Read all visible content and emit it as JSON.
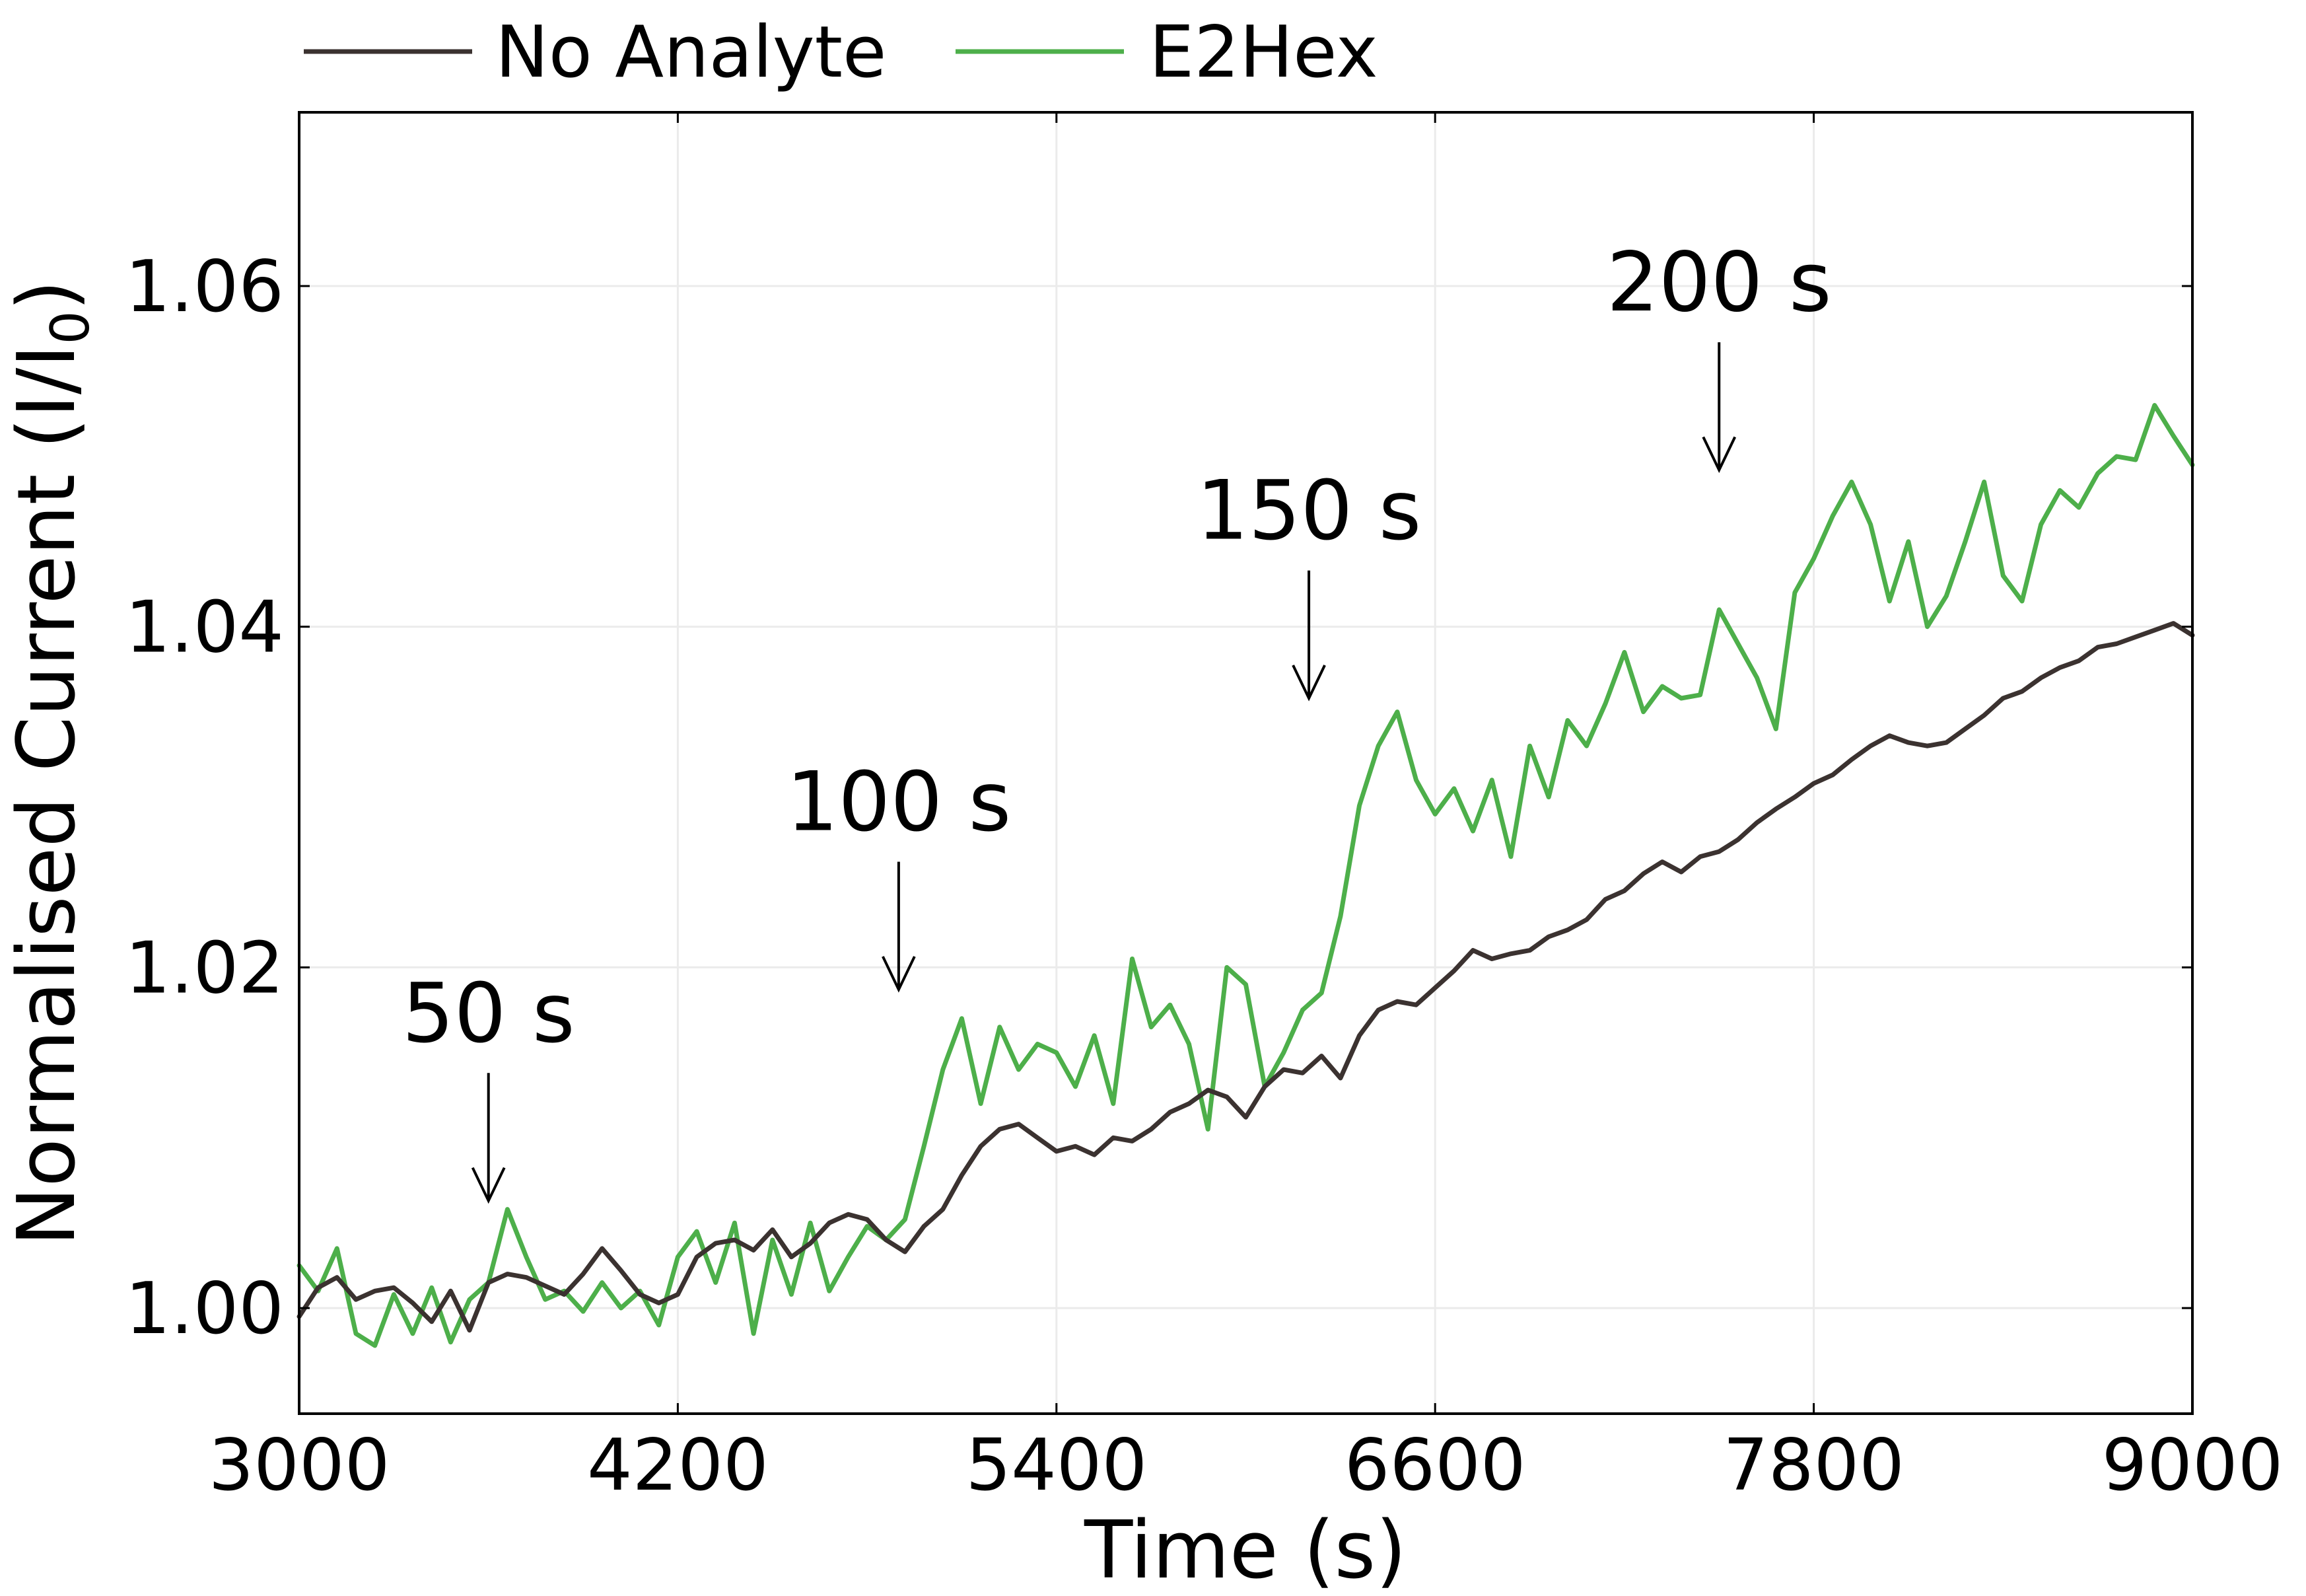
{
  "chart_data": {
    "type": "line",
    "title": "",
    "xlabel": "Time (s)",
    "ylabel_main": "Normalised Current (I/I",
    "ylabel_sub": "0",
    "ylabel_close": ")",
    "xlim": [
      3000,
      9000
    ],
    "ylim": [
      0.9938,
      1.0702
    ],
    "xticks": [
      3000,
      4200,
      5400,
      6600,
      7800,
      9000
    ],
    "xtick_labels": [
      "3000",
      "4200",
      "5400",
      "6600",
      "7800",
      "9000"
    ],
    "yticks": [
      1.0,
      1.02,
      1.04,
      1.06
    ],
    "ytick_labels": [
      "1.00",
      "1.02",
      "1.04",
      "1.06"
    ],
    "grid": true,
    "legend_position": "top-left-outside",
    "series": [
      {
        "name": "No Analyte",
        "color": "#3b3230",
        "x": [
          3000,
          3060,
          3120,
          3180,
          3240,
          3300,
          3360,
          3420,
          3480,
          3540,
          3600,
          3660,
          3720,
          3780,
          3840,
          3900,
          3960,
          4020,
          4080,
          4140,
          4200,
          4260,
          4320,
          4380,
          4440,
          4500,
          4560,
          4620,
          4680,
          4740,
          4800,
          4860,
          4920,
          4980,
          5040,
          5100,
          5160,
          5220,
          5280,
          5340,
          5400,
          5460,
          5520,
          5580,
          5640,
          5700,
          5760,
          5820,
          5880,
          5940,
          6000,
          6060,
          6120,
          6180,
          6240,
          6300,
          6360,
          6420,
          6480,
          6540,
          6600,
          6660,
          6720,
          6780,
          6840,
          6900,
          6960,
          7020,
          7080,
          7140,
          7200,
          7260,
          7320,
          7380,
          7440,
          7500,
          7560,
          7620,
          7680,
          7740,
          7800,
          7860,
          7920,
          7980,
          8040,
          8100,
          8160,
          8220,
          8280,
          8340,
          8400,
          8460,
          8520,
          8580,
          8640,
          8700,
          8760,
          8820,
          8880,
          8940,
          9000
        ],
        "y": [
          0.9995,
          1.0012,
          1.0018,
          1.0005,
          1.001,
          1.0012,
          1.0003,
          0.9992,
          1.001,
          0.9987,
          1.0015,
          1.002,
          1.0018,
          1.0013,
          1.0008,
          1.002,
          1.0035,
          1.0022,
          1.0008,
          1.0003,
          1.0008,
          1.003,
          1.0038,
          1.004,
          1.0034,
          1.0046,
          1.003,
          1.0038,
          1.005,
          1.0055,
          1.0052,
          1.004,
          1.0033,
          1.0048,
          1.0058,
          1.0078,
          1.0095,
          1.0105,
          1.0108,
          1.01,
          1.0092,
          1.0095,
          1.009,
          1.01,
          1.0098,
          1.0105,
          1.0115,
          1.012,
          1.0128,
          1.0124,
          1.0112,
          1.013,
          1.014,
          1.0138,
          1.0148,
          1.0135,
          1.016,
          1.0175,
          1.018,
          1.0178,
          1.0188,
          1.0198,
          1.021,
          1.0205,
          1.0208,
          1.021,
          1.0218,
          1.0222,
          1.0228,
          1.024,
          1.0245,
          1.0255,
          1.0262,
          1.0256,
          1.0265,
          1.0268,
          1.0275,
          1.0285,
          1.0293,
          1.03,
          1.0308,
          1.0313,
          1.0322,
          1.033,
          1.0336,
          1.0332,
          1.033,
          1.0332,
          1.034,
          1.0348,
          1.0358,
          1.0362,
          1.037,
          1.0376,
          1.038,
          1.0388,
          1.039,
          1.0394,
          1.0398,
          1.0402,
          1.0395
        ]
      },
      {
        "name": "E2Hex",
        "color": "#4daf4a",
        "x": [
          3000,
          3060,
          3120,
          3180,
          3240,
          3300,
          3360,
          3420,
          3480,
          3540,
          3600,
          3660,
          3720,
          3780,
          3840,
          3900,
          3960,
          4020,
          4080,
          4140,
          4200,
          4260,
          4320,
          4380,
          4440,
          4500,
          4560,
          4620,
          4680,
          4740,
          4800,
          4860,
          4920,
          4980,
          5040,
          5100,
          5160,
          5220,
          5280,
          5340,
          5400,
          5460,
          5520,
          5580,
          5640,
          5700,
          5760,
          5820,
          5880,
          5940,
          6000,
          6060,
          6120,
          6180,
          6240,
          6300,
          6360,
          6420,
          6480,
          6540,
          6600,
          6660,
          6720,
          6780,
          6840,
          6900,
          6960,
          7020,
          7080,
          7140,
          7200,
          7260,
          7320,
          7380,
          7440,
          7500,
          7560,
          7620,
          7680,
          7740,
          7800,
          7860,
          7920,
          7980,
          8040,
          8100,
          8160,
          8220,
          8280,
          8340,
          8400,
          8460,
          8520,
          8580,
          8640,
          8700,
          8760,
          8820,
          8880,
          8940,
          9000
        ],
        "y": [
          1.0025,
          1.001,
          1.0035,
          0.9985,
          0.9978,
          1.0008,
          0.9985,
          1.0012,
          0.998,
          1.0005,
          1.0015,
          1.0058,
          1.003,
          1.0005,
          1.001,
          0.9998,
          1.0015,
          1.0,
          1.001,
          0.999,
          1.003,
          1.0045,
          1.0015,
          1.005,
          0.9985,
          1.004,
          1.0008,
          1.005,
          1.001,
          1.003,
          1.0048,
          1.004,
          1.0052,
          1.0095,
          1.014,
          1.017,
          1.012,
          1.0165,
          1.014,
          1.0155,
          1.015,
          1.013,
          1.016,
          1.012,
          1.0205,
          1.0165,
          1.0178,
          1.0155,
          1.0105,
          1.02,
          1.019,
          1.013,
          1.015,
          1.0175,
          1.0185,
          1.023,
          1.0295,
          1.033,
          1.035,
          1.031,
          1.029,
          1.0305,
          1.028,
          1.031,
          1.0265,
          1.033,
          1.03,
          1.0345,
          1.033,
          1.0355,
          1.0385,
          1.035,
          1.0365,
          1.0358,
          1.036,
          1.041,
          1.039,
          1.037,
          1.034,
          1.042,
          1.044,
          1.0465,
          1.0485,
          1.046,
          1.0415,
          1.045,
          1.04,
          1.0418,
          1.045,
          1.0485,
          1.043,
          1.0415,
          1.046,
          1.048,
          1.047,
          1.049,
          1.05,
          1.0498,
          1.053,
          1.0512,
          1.0495
        ]
      }
    ],
    "annotations": [
      {
        "text": "50 s",
        "x": 3600,
        "arrow_top_y": 1.0138,
        "arrow_tip_y": 1.0063
      },
      {
        "text": "100 s",
        "x": 4900,
        "arrow_top_y": 1.0262,
        "arrow_tip_y": 1.0187
      },
      {
        "text": "150 s",
        "x": 6200,
        "arrow_top_y": 1.0433,
        "arrow_tip_y": 1.0358
      },
      {
        "text": "200 s",
        "x": 7500,
        "arrow_top_y": 1.0567,
        "arrow_tip_y": 1.0492
      }
    ]
  }
}
